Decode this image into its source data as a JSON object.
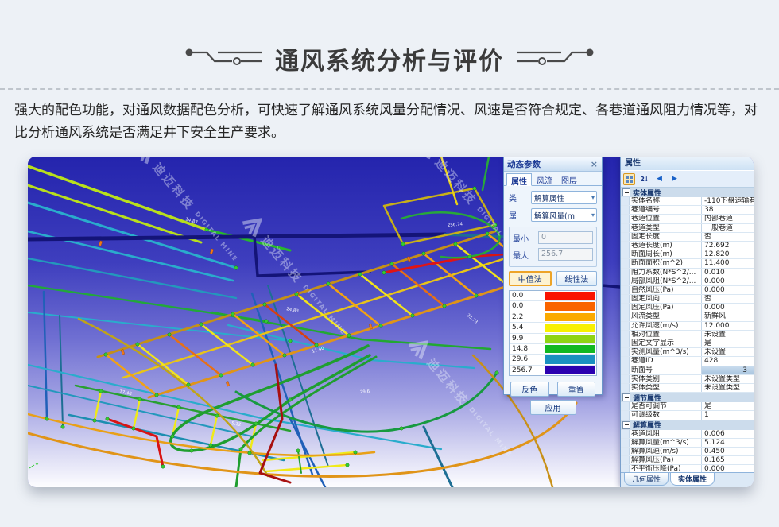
{
  "page": {
    "title": "通风系统分析与评价",
    "description": "强大的配色功能，对通风数据配色分析，可快速了解通风系统风量分配情况、风速是否符合规定、各巷道通风阻力情况等，对比分析通风系统是否满足井下安全生产要求。"
  },
  "watermark": {
    "cn": "迪迈科技",
    "en": "DIGITAL MINE"
  },
  "icons": {
    "close": "×",
    "dropdown": "▾",
    "sort": "2↓",
    "prev": "◀",
    "next": "▶"
  },
  "viz": {
    "axis_label": "Y",
    "labels": [
      "14.87",
      "24.83",
      "17.48",
      "256.74",
      "11.40",
      "23.73",
      "5.12",
      "29.6"
    ]
  },
  "dialog": {
    "title": "动态参数",
    "tabs": [
      "属性",
      "风流",
      "图层"
    ],
    "fields": {
      "class_label": "类",
      "class_value": "解算属性",
      "attr_label": "属",
      "attr_value": "解算风量(m",
      "min_label": "最小",
      "min_value": "0",
      "max_label": "最大",
      "max_value": "256.7"
    },
    "method_buttons": {
      "median": "中值法",
      "linear": "线性法"
    },
    "scale": [
      {
        "value": "0.0",
        "color": "#fa1400"
      },
      {
        "value": "0.0",
        "color": "#fa6400"
      },
      {
        "value": "2.2",
        "color": "#fbaa00"
      },
      {
        "value": "5.4",
        "color": "#f8f000"
      },
      {
        "value": "9.9",
        "color": "#8fd414"
      },
      {
        "value": "14.8",
        "color": "#12b822"
      },
      {
        "value": "29.6",
        "color": "#1a90c0"
      },
      {
        "value": "256.7",
        "color": "#2b00b0"
      }
    ],
    "action_buttons": {
      "invert": "反色",
      "reset": "重置",
      "apply": "应用"
    }
  },
  "panel": {
    "title": "属性",
    "sections": [
      {
        "title": "实体属性",
        "rows": [
          {
            "label": "实体名称",
            "value": "-110下盘运输巷"
          },
          {
            "label": "巷道编号",
            "value": "38"
          },
          {
            "label": "巷道位置",
            "value": "内部巷道"
          },
          {
            "label": "巷道类型",
            "value": "一般巷道"
          },
          {
            "label": "固定长度",
            "value": "否"
          },
          {
            "label": "巷道长度(m)",
            "value": "72.692"
          },
          {
            "label": "断面周长(m)",
            "value": "12.820"
          },
          {
            "label": "断面面积(m^2)",
            "value": "11.400"
          },
          {
            "label": "阻力系数(N*S^2/...",
            "value": "0.010"
          },
          {
            "label": "局部风阻(N*S^2/...",
            "value": "0.000"
          },
          {
            "label": "自然风压(Pa)",
            "value": "0.000"
          },
          {
            "label": "固定风向",
            "value": "否"
          },
          {
            "label": "固定风压(Pa)",
            "value": "0.000"
          },
          {
            "label": "风流类型",
            "value": "新鲜风"
          },
          {
            "label": "允许风速(m/s)",
            "value": "12.000"
          },
          {
            "label": "相对位置",
            "value": "未设置"
          },
          {
            "label": "固定文字显示",
            "value": "是"
          },
          {
            "label": "实测风量(m^3/s)",
            "value": "未设置"
          },
          {
            "label": "巷道ID",
            "value": "428"
          },
          {
            "label": "断面号",
            "value": "3",
            "sel": true
          },
          {
            "label": "实体类别",
            "value": "未设置类型"
          },
          {
            "label": "实体类型",
            "value": "未设置类型"
          }
        ]
      },
      {
        "title": "调节属性",
        "rows": [
          {
            "label": "是否可调节",
            "value": "是"
          },
          {
            "label": "可调级数",
            "value": "1"
          }
        ]
      },
      {
        "title": "解算属性",
        "rows": [
          {
            "label": "巷道风阻",
            "value": "0.006"
          },
          {
            "label": "解算风量(m^3/s)",
            "value": "5.124"
          },
          {
            "label": "解算风速(m/s)",
            "value": "0.450"
          },
          {
            "label": "解算风压(Pa)",
            "value": "0.165"
          },
          {
            "label": "不平衡压降(Pa)",
            "value": "0.000"
          }
        ]
      }
    ],
    "bottom_tabs": [
      "几何属性",
      "实体属性"
    ]
  }
}
